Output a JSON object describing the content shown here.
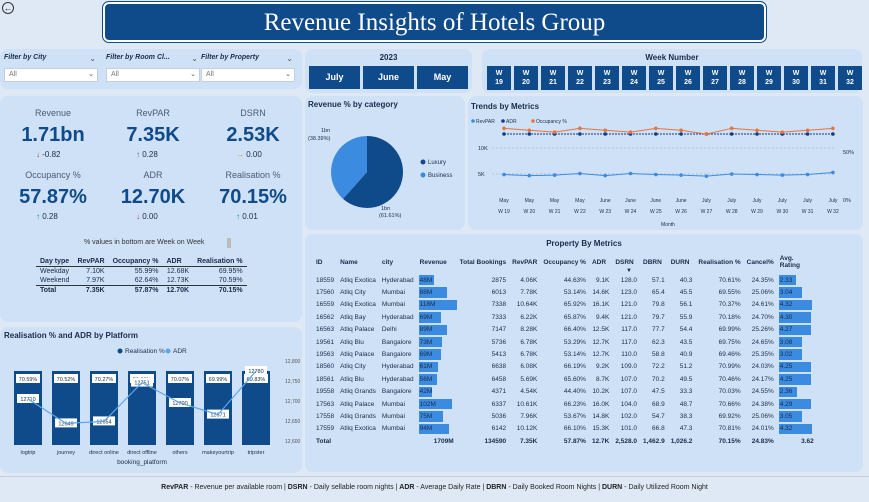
{
  "title": "Revenue Insights of Hotels Group",
  "filters": [
    {
      "label": "Filter by City",
      "value": "All"
    },
    {
      "label": "Filter by Room Cl...",
      "value": "All"
    },
    {
      "label": "Filter by Property",
      "value": "All"
    }
  ],
  "year": "2023",
  "months": [
    "July",
    "June",
    "May"
  ],
  "week_header": "Week Number",
  "weeks": [
    "19",
    "20",
    "21",
    "22",
    "23",
    "24",
    "25",
    "26",
    "27",
    "28",
    "29",
    "30",
    "31",
    "32"
  ],
  "week_prefix": "W",
  "kpis": [
    {
      "label": "Revenue",
      "value": "1.71bn",
      "delta": "-0.82",
      "dir": "down"
    },
    {
      "label": "RevPAR",
      "value": "7.35K",
      "delta": "0.28",
      "dir": "up"
    },
    {
      "label": "DSRN",
      "value": "2.53K",
      "delta": "0.00",
      "dir": "right"
    },
    {
      "label": "Occupancy %",
      "value": "57.87%",
      "delta": "0.28",
      "dir": "up"
    },
    {
      "label": "ADR",
      "value": "12.70K",
      "delta": "0.00",
      "dir": "down"
    },
    {
      "label": "Realisation %",
      "value": "70.15%",
      "delta": "0.01",
      "dir": "up"
    }
  ],
  "wow_note": "% values in bottom are Week on Week",
  "daytype_table": {
    "headers": [
      "Day type",
      "RevPAR",
      "Occupancy %",
      "ADR",
      "Realisation %"
    ],
    "rows": [
      [
        "Weekday",
        "7.10K",
        "55.99%",
        "12.68K",
        "69.95%"
      ],
      [
        "Weekend",
        "7.97K",
        "62.64%",
        "12.73K",
        "70.59%"
      ]
    ],
    "total": [
      "Total",
      "7.35K",
      "57.87%",
      "12.70K",
      "70.15%"
    ]
  },
  "pie": {
    "title": "Revenue % by category",
    "luxury_label": "1bn\n(61.61%)",
    "business_label": "1bn\n(38.39%)",
    "legend": [
      "Luxury",
      "Business"
    ]
  },
  "trends": {
    "title": "Trends by Metrics",
    "legend": [
      "RevPAR",
      "ADR",
      "Occupancy %"
    ],
    "y_left": [
      "10K",
      "5K"
    ],
    "y_right": [
      "50%",
      "0%"
    ],
    "xlabel": "Month",
    "x_top": [
      "May",
      "May",
      "May",
      "May",
      "June",
      "June",
      "June",
      "June",
      "July",
      "July",
      "July",
      "July",
      "July",
      "July"
    ],
    "x_bot": [
      "W 19",
      "W 20",
      "W 21",
      "W 22",
      "W 23",
      "W 24",
      "W 25",
      "W 26",
      "W 27",
      "W 28",
      "W 29",
      "W 30",
      "W 31",
      "W 32"
    ]
  },
  "realisation": {
    "title": "Realisation % and ADR by Platform",
    "legend": [
      "Realisation %",
      "ADR"
    ],
    "xlabel": "booking_platform",
    "platforms": [
      "logtrip",
      "journey",
      "direct online",
      "direct offline",
      "others",
      "makeyourtrip",
      "tripster"
    ],
    "real_labels": [
      "70.59%",
      "70.52%",
      "70.27%",
      "70.20%",
      "70.07%",
      "69.99%",
      "69.83%"
    ],
    "adr_labels": [
      "12710",
      "12649",
      "12654",
      "12751",
      "12700",
      "12671",
      "12780"
    ],
    "y_right": [
      "12,800",
      "12,750",
      "12,700",
      "12,650",
      "12,600"
    ]
  },
  "property": {
    "title": "Property By Metrics",
    "headers": [
      "ID",
      "Name",
      "city",
      "Revenue",
      "Total Bookings",
      "RevPAR",
      "Occupancy %",
      "ADR",
      "DSRN",
      "DBRN",
      "DURN",
      "Realisation %",
      "Cancel%",
      "Avg. Rating"
    ],
    "rows": [
      [
        "18559",
        "Atliq Exotica",
        "Hyderabad",
        "48M",
        "2875",
        "4.06K",
        "44.63%",
        "9.1K",
        "128.0",
        "57.1",
        "40.3",
        "70.61%",
        "24.35%",
        "2.33"
      ],
      [
        "17560",
        "Atliq City",
        "Mumbai",
        "88M",
        "6013",
        "7.78K",
        "53.14%",
        "14.6K",
        "123.0",
        "65.4",
        "45.5",
        "69.55%",
        "25.06%",
        "3.04"
      ],
      [
        "16559",
        "Atliq Exotica",
        "Mumbai",
        "118M",
        "7338",
        "10.64K",
        "65.92%",
        "16.1K",
        "121.0",
        "79.8",
        "56.1",
        "70.37%",
        "24.61%",
        "4.32"
      ],
      [
        "16562",
        "Atliq Bay",
        "Hyderabad",
        "69M",
        "7333",
        "6.22K",
        "65.87%",
        "9.4K",
        "121.0",
        "79.7",
        "55.9",
        "70.18%",
        "24.70%",
        "4.30"
      ],
      [
        "16563",
        "Atliq Palace",
        "Delhi",
        "89M",
        "7147",
        "8.28K",
        "66.40%",
        "12.5K",
        "117.0",
        "77.7",
        "54.4",
        "69.99%",
        "25.26%",
        "4.27"
      ],
      [
        "19561",
        "Atliq Blu",
        "Bangalore",
        "73M",
        "5736",
        "6.78K",
        "53.29%",
        "12.7K",
        "117.0",
        "62.3",
        "43.5",
        "69.75%",
        "24.65%",
        "3.08"
      ],
      [
        "19563",
        "Atliq Palace",
        "Bangalore",
        "69M",
        "5413",
        "6.78K",
        "53.14%",
        "12.7K",
        "110.0",
        "58.8",
        "40.9",
        "69.46%",
        "25.35%",
        "3.02"
      ],
      [
        "18560",
        "Atliq City",
        "Hyderabad",
        "61M",
        "6638",
        "6.08K",
        "66.19%",
        "9.2K",
        "109.0",
        "72.2",
        "51.2",
        "70.99%",
        "24.03%",
        "4.25"
      ],
      [
        "18561",
        "Atliq Blu",
        "Hyderabad",
        "56M",
        "6458",
        "5.69K",
        "65.60%",
        "8.7K",
        "107.0",
        "70.2",
        "49.5",
        "70.46%",
        "24.17%",
        "4.25"
      ],
      [
        "19558",
        "Atliq Grands",
        "Bangalore",
        "42M",
        "4371",
        "4.54K",
        "44.40%",
        "10.2K",
        "107.0",
        "47.5",
        "33.3",
        "70.03%",
        "24.55%",
        "2.36"
      ],
      [
        "17563",
        "Atliq Palace",
        "Mumbai",
        "102M",
        "6337",
        "10.61K",
        "66.23%",
        "16.0K",
        "104.0",
        "68.9",
        "48.7",
        "70.66%",
        "24.38%",
        "4.29"
      ],
      [
        "17558",
        "Atliq Grands",
        "Mumbai",
        "75M",
        "5036",
        "7.96K",
        "53.67%",
        "14.8K",
        "102.0",
        "54.7",
        "38.3",
        "69.92%",
        "25.06%",
        "3.05"
      ],
      [
        "17559",
        "Atliq Exotica",
        "Mumbai",
        "94M",
        "6142",
        "10.12K",
        "66.10%",
        "15.3K",
        "101.0",
        "66.8",
        "47.3",
        "70.81%",
        "24.01%",
        "4.32"
      ]
    ],
    "total": [
      "Total",
      "",
      "",
      "1709M",
      "134590",
      "7.35K",
      "57.87%",
      "12.7K",
      "2,528.0",
      "1,462.9",
      "1,026.2",
      "70.15%",
      "24.83%",
      "3.62"
    ],
    "revenue_values": [
      48,
      88,
      118,
      69,
      89,
      73,
      69,
      61,
      56,
      42,
      102,
      75,
      94
    ],
    "rating_values": [
      2.33,
      3.04,
      4.32,
      4.3,
      4.27,
      3.08,
      3.02,
      4.25,
      4.25,
      2.36,
      4.29,
      3.05,
      4.32
    ]
  },
  "footer": [
    [
      "RevPAR",
      " - Revenue per available room | "
    ],
    [
      "DSRN",
      " - Daily sellable room nights | "
    ],
    [
      "ADR",
      " - Average Daily Rate | "
    ],
    [
      "DBRN",
      " - Daily Booked Room Nights | "
    ],
    [
      "DURN",
      " - Daily Utilized Room Night"
    ]
  ],
  "colors": {
    "navy": "#0f4a8a",
    "panel": "#cfe1f7",
    "mid": "#3b8be0",
    "orange": "#e8743b"
  }
}
